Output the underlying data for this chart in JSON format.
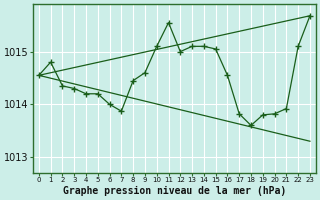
{
  "title": "Graphe pression niveau de la mer (hPa)",
  "background_color": "#cceee8",
  "plot_bg_color": "#cceee8",
  "grid_color": "#ffffff",
  "line_color": "#1a5e1a",
  "xlim": [
    -0.5,
    23.5
  ],
  "ylim": [
    1012.7,
    1015.9
  ],
  "yticks": [
    1013,
    1014,
    1015
  ],
  "xticks": [
    0,
    1,
    2,
    3,
    4,
    5,
    6,
    7,
    8,
    9,
    10,
    11,
    12,
    13,
    14,
    15,
    16,
    17,
    18,
    19,
    20,
    21,
    22,
    23
  ],
  "series1_x": [
    0,
    1,
    2,
    3,
    4,
    5,
    6,
    7,
    8,
    9,
    10,
    11,
    12,
    13,
    14,
    15,
    16,
    17,
    18,
    19,
    20,
    21,
    22,
    23
  ],
  "series1_y": [
    1014.55,
    1014.8,
    1014.35,
    1014.3,
    1014.2,
    1014.2,
    1014.0,
    1013.87,
    1014.45,
    1014.6,
    1015.1,
    1015.55,
    1015.0,
    1015.1,
    1015.1,
    1015.05,
    1014.55,
    1013.82,
    1013.6,
    1013.8,
    1013.82,
    1013.92,
    1015.1,
    1015.68
  ],
  "series2_x": [
    0,
    23
  ],
  "series2_y": [
    1014.55,
    1015.68
  ],
  "series3_x": [
    0,
    23
  ],
  "series3_y": [
    1014.55,
    1013.3
  ]
}
